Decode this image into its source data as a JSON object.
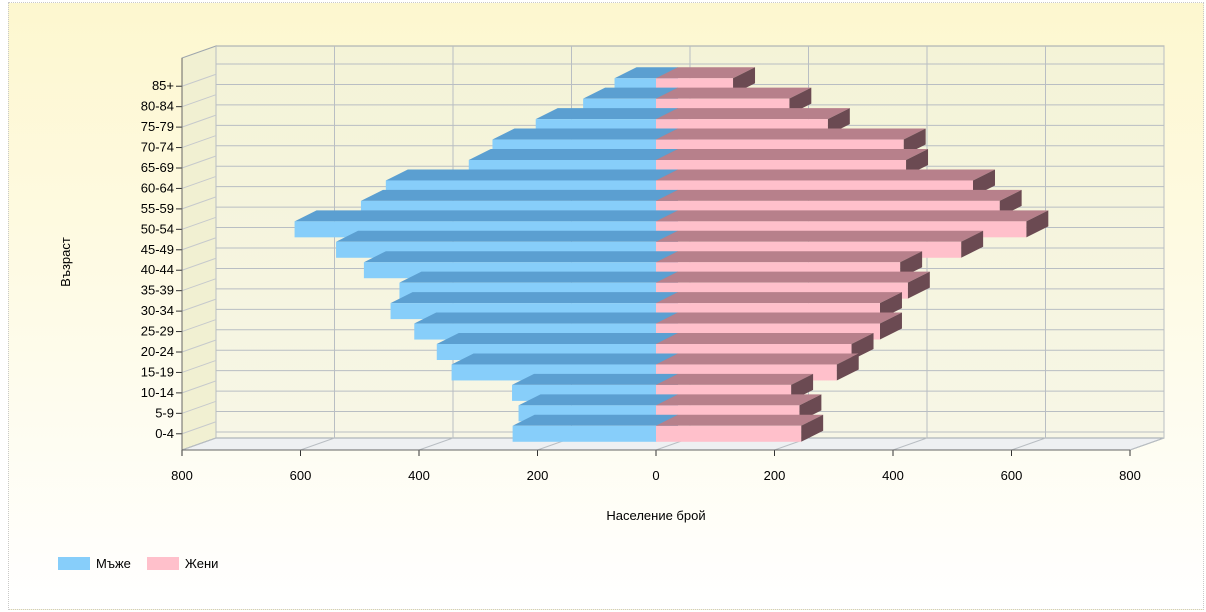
{
  "chart_data": {
    "type": "bar",
    "orientation": "horizontal",
    "categories": [
      "0-4",
      "5-9",
      "10-14",
      "15-19",
      "20-24",
      "25-29",
      "30-34",
      "35-39",
      "40-44",
      "45-49",
      "50-54",
      "55-59",
      "60-64",
      "65-69",
      "70-74",
      "75-79",
      "80-84",
      "85+"
    ],
    "series": [
      {
        "name": "Мъже",
        "color": "#87cefa",
        "side": "left",
        "values": [
          242,
          232,
          243,
          345,
          370,
          408,
          448,
          433,
          493,
          540,
          610,
          498,
          456,
          316,
          276,
          203,
          123,
          70
        ]
      },
      {
        "name": "Жени",
        "color": "#ffc0cb",
        "side": "right",
        "values": [
          245,
          242,
          228,
          305,
          330,
          378,
          378,
          425,
          412,
          515,
          625,
          580,
          535,
          422,
          418,
          290,
          225,
          130
        ]
      }
    ],
    "xlabel": "Население брой",
    "ylabel": "Възраст",
    "xlim": [
      -800,
      800
    ],
    "x_ticks": [
      "800",
      "600",
      "400",
      "200",
      "0",
      "200",
      "400",
      "600",
      "800"
    ],
    "grid": true,
    "style": "3d",
    "legend_position": "bottom-left"
  }
}
